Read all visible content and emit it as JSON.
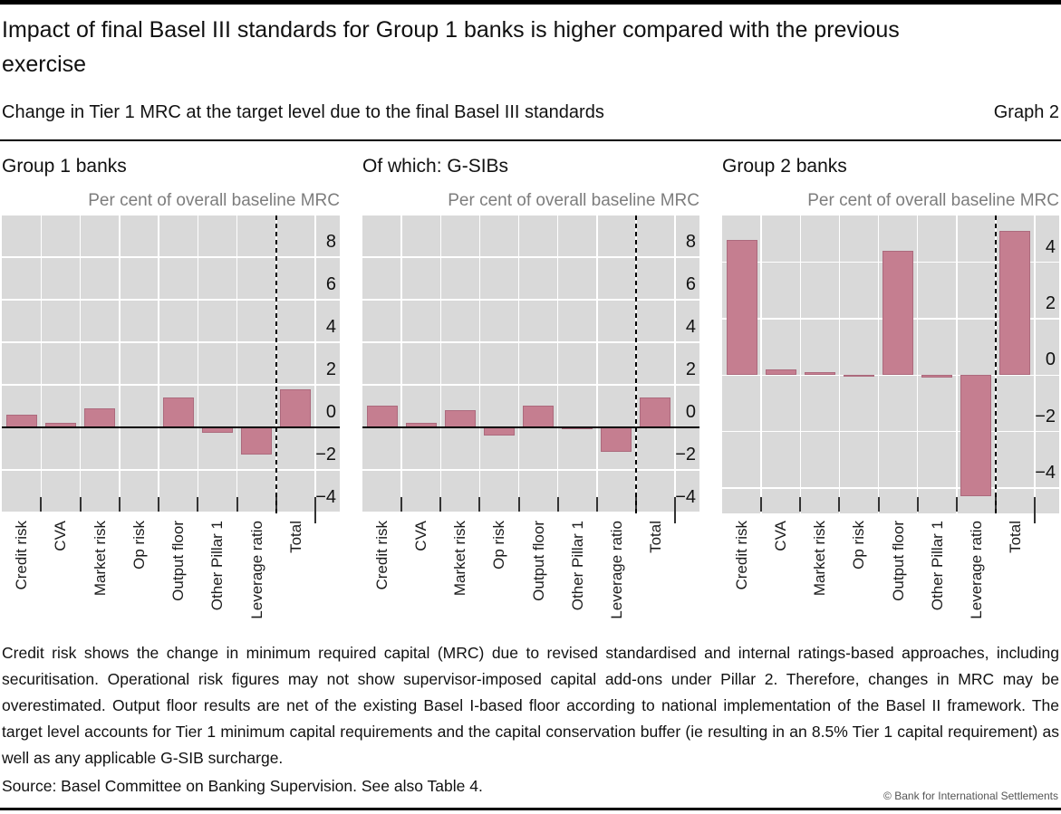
{
  "page": {
    "title": "Impact of final Basel III standards for Group 1 banks is higher compared with the previous exercise",
    "subtitle": "Change in Tier 1 MRC at the target level due to the final Basel III standards",
    "graph_label": "Graph 2",
    "footnote": "Credit risk shows the change in minimum required capital (MRC) due to revised standardised and internal ratings-based approaches, including securitisation. Operational risk figures may not show supervisor-imposed capital add-ons under Pillar 2. Therefore, changes in MRC may be overestimated. Output floor results are net of the existing Basel I-based floor according to national implementation of the Basel II framework. The target level accounts for Tier 1 minimum capital requirements and the capital conservation buffer (ie resulting in an 8.5% Tier 1 capital requirement) as well as any applicable G-SIB surcharge.",
    "source": "Source: Basel Committee on Banking Supervision. See also Table 4.",
    "copyright": "© Bank for International Settlements"
  },
  "colors": {
    "bar_fill": "#c57e90",
    "bar_edge": "#ac6a7d",
    "plot_bg": "#d9d9d9",
    "grid": "#ffffff",
    "unit_label": "#7d7d7d",
    "zero_line": "#000000",
    "dashed_line": "#000000"
  },
  "chart_data": [
    {
      "type": "bar",
      "title": "Group 1 banks",
      "unit_label": "Per cent of overall baseline MRC",
      "categories": [
        "Credit risk",
        "CVA",
        "Market risk",
        "Op risk",
        "Output floor",
        "Other Pillar 1",
        "Leverage ratio",
        "Total"
      ],
      "values": [
        0.6,
        0.2,
        0.9,
        0.0,
        1.4,
        -0.25,
        -1.3,
        1.8
      ],
      "ylim": [
        -4.05,
        9.95
      ],
      "yticks": [
        8,
        6,
        4,
        2,
        0,
        -2,
        -4
      ],
      "yaxis_side": "right",
      "grid": true,
      "zero_line": true,
      "dashed_separator_at": 7
    },
    {
      "type": "bar",
      "title": "Of which: G-SIBs",
      "unit_label": "Per cent of overall baseline MRC",
      "categories": [
        "Credit risk",
        "CVA",
        "Market risk",
        "Op risk",
        "Output floor",
        "Other Pillar 1",
        "Leverage ratio",
        "Total"
      ],
      "values": [
        1.0,
        0.2,
        0.8,
        -0.4,
        1.0,
        -0.1,
        -1.15,
        1.4
      ],
      "ylim": [
        -4.05,
        9.95
      ],
      "yticks": [
        8,
        6,
        4,
        2,
        0,
        -2,
        -4
      ],
      "yaxis_side": "right",
      "grid": true,
      "zero_line": true,
      "dashed_separator_at": 7
    },
    {
      "type": "bar",
      "title": "Group 2 banks",
      "unit_label": "Per cent of overall baseline MRC",
      "categories": [
        "Credit risk",
        "CVA",
        "Market risk",
        "Op risk",
        "Output floor",
        "Other Pillar 1",
        "Leverage ratio",
        "Total"
      ],
      "values": [
        4.8,
        0.2,
        0.1,
        -0.05,
        4.4,
        -0.1,
        -4.3,
        5.1
      ],
      "ylim": [
        -4.9,
        5.66
      ],
      "yticks": [
        4,
        2,
        0,
        -2,
        -4
      ],
      "yaxis_side": "right",
      "grid": true,
      "zero_line": false,
      "dashed_separator_at": 7
    }
  ]
}
